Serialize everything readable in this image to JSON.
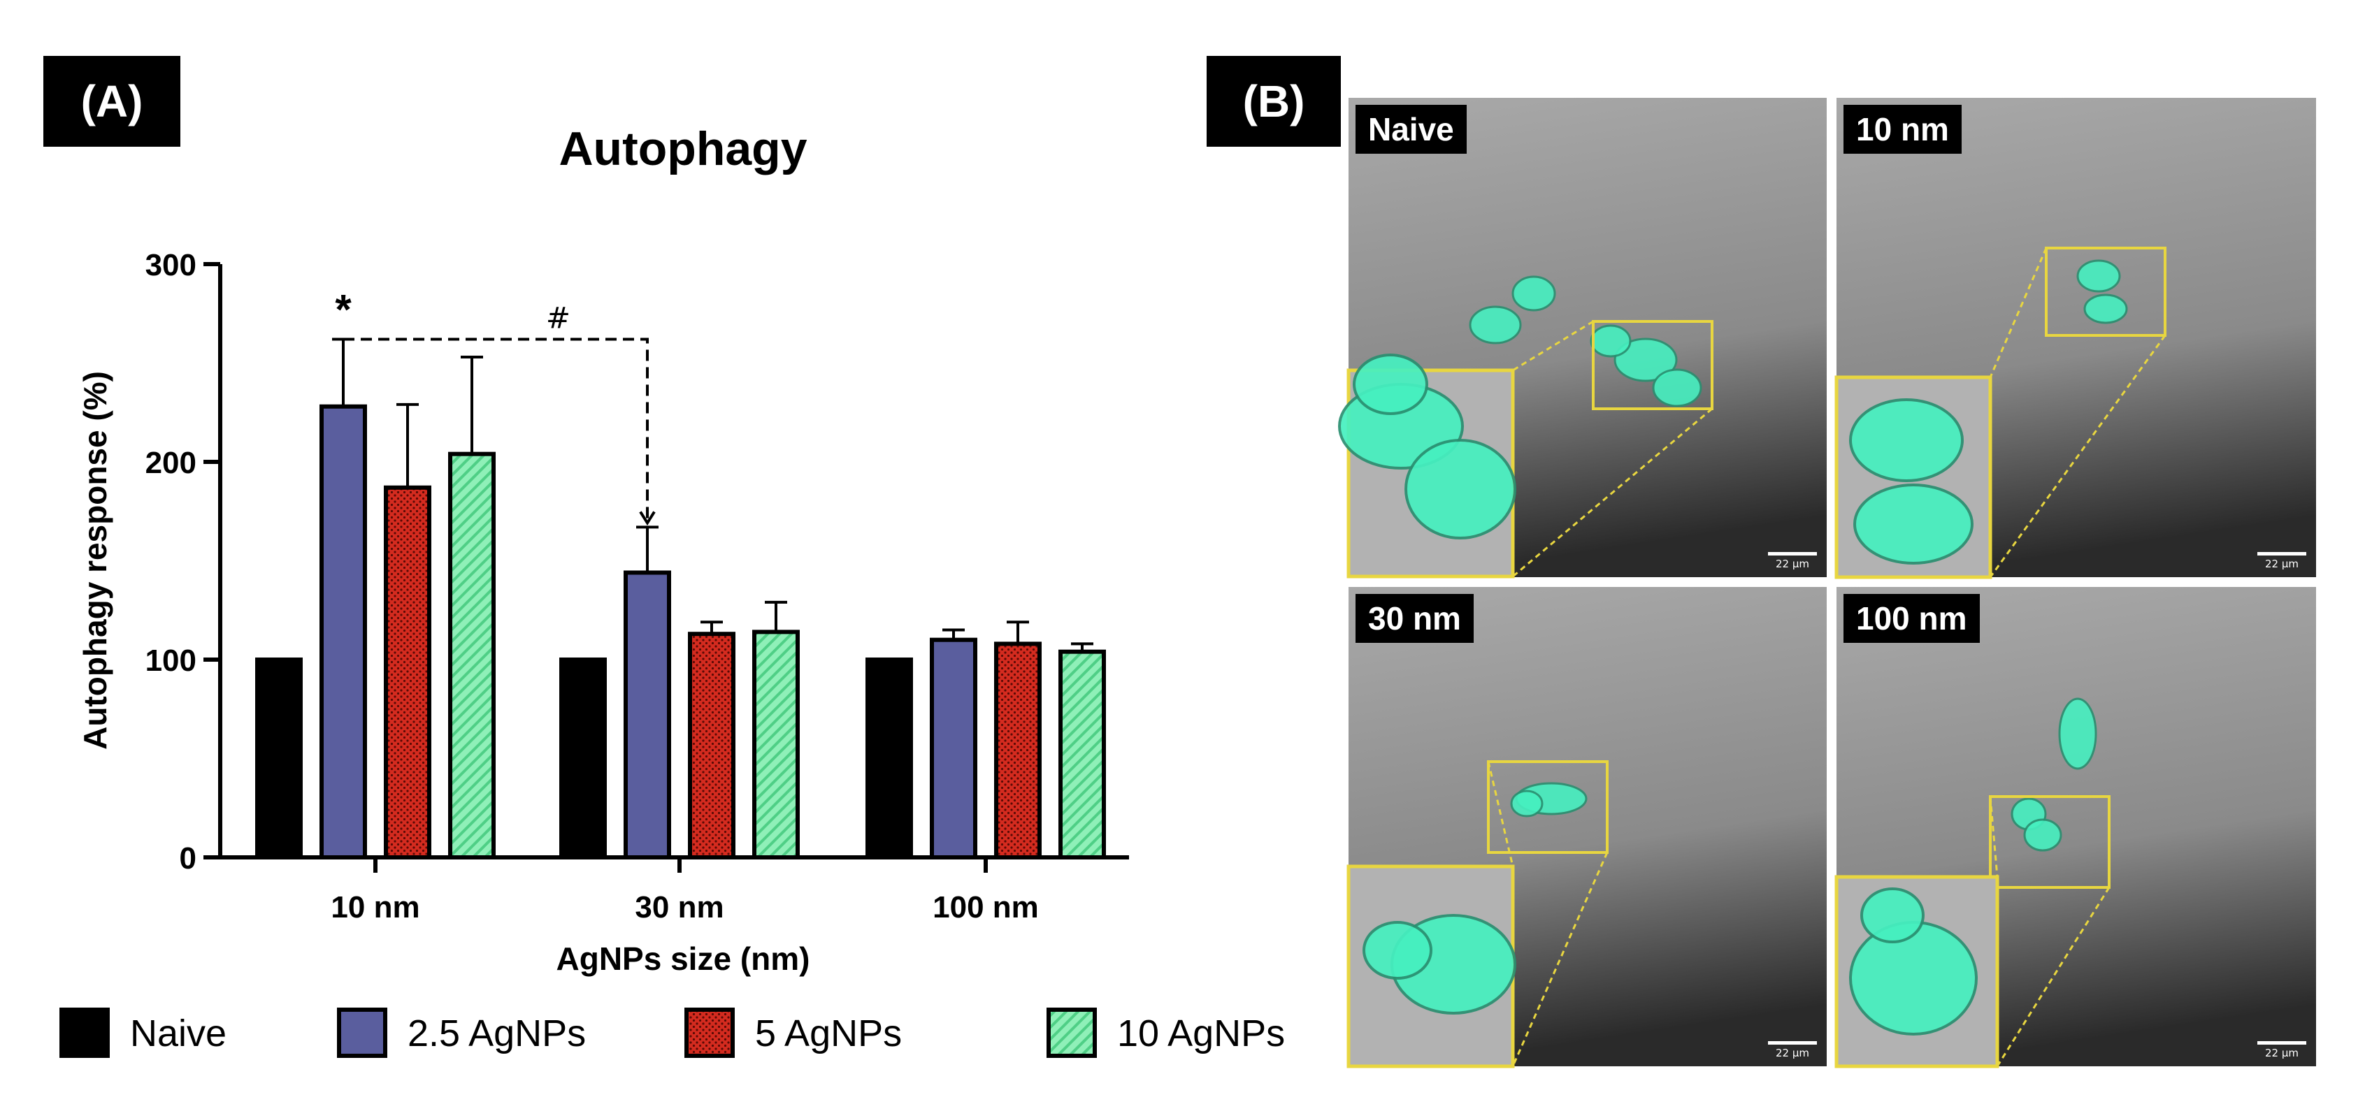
{
  "panel_a": {
    "tag": "(A)"
  },
  "panel_b": {
    "tag": "(B)",
    "images": [
      {
        "label": "Naive",
        "scale": "22 µm"
      },
      {
        "label": "10 nm",
        "scale": "22 µm"
      },
      {
        "label": "30 nm",
        "scale": "22 µm"
      },
      {
        "label": "100 nm",
        "scale": "22 µm"
      }
    ]
  },
  "colors": {
    "naive": "#000000",
    "agnp_2_5": "#5a5e9e",
    "agnp_5": "#d42b1f",
    "agnp_10": "#7fe3a8",
    "micro_highlight": "#e8d640",
    "cell_fluorescence": "#46f0c0"
  },
  "chart_data": {
    "type": "bar",
    "title": "Autophagy",
    "xlabel": "AgNPs size (nm)",
    "ylabel": "Autophagy response (%)",
    "ylim": [
      0,
      300
    ],
    "yticks": [
      0,
      100,
      200,
      300
    ],
    "categories": [
      "10 nm",
      "30 nm",
      "100 nm"
    ],
    "series": [
      {
        "name": "Naive",
        "values": [
          100,
          100,
          100
        ],
        "errors": [
          0,
          0,
          0
        ]
      },
      {
        "name": "2.5 AgNPs",
        "values": [
          228,
          144,
          110
        ],
        "errors": [
          34,
          23,
          5
        ]
      },
      {
        "name": "5 AgNPs",
        "values": [
          187,
          113,
          108
        ],
        "errors": [
          42,
          6,
          11
        ]
      },
      {
        "name": "10 AgNPs",
        "values": [
          204,
          114,
          104
        ],
        "errors": [
          49,
          15,
          4
        ]
      }
    ],
    "annotations": [
      {
        "text": "*",
        "category": "10 nm",
        "series": "2.5 AgNPs"
      },
      {
        "text": "#",
        "from_category": "10 nm",
        "to_category": "30 nm",
        "series": "2.5 AgNPs"
      }
    ],
    "legend_position": "bottom",
    "grid": false
  }
}
